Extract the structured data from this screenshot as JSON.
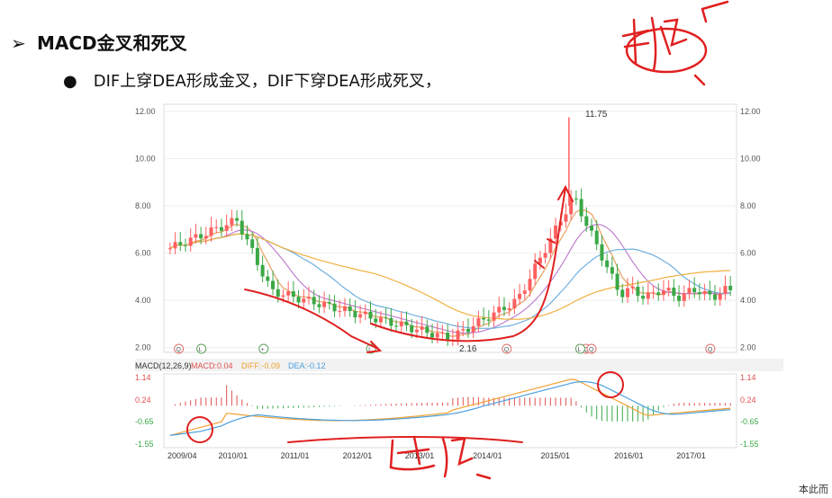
{
  "slide": {
    "heading_marker": "➢",
    "heading": "MACD金叉和死叉",
    "bullet_marker": "●",
    "bullet": "DIF上穿DEA形成金叉，DIF下穿DEA形成死叉，",
    "corner_text": "本此而"
  },
  "annotations": {
    "handwriting_top": "新低",
    "handwriting_bottom": "背离",
    "ink_color": "#e02020"
  },
  "chart_data": [
    {
      "type": "candlestick",
      "title": "",
      "y_ticks": [
        "12.00",
        "10.00",
        "8.00",
        "6.00",
        "4.00",
        "2.00"
      ],
      "ylim": [
        1.8,
        12.3
      ],
      "peak_label": "11.75",
      "low_label": "2.16",
      "event_markers": [
        "Q",
        "L",
        "+",
        "L",
        "Q",
        "Q",
        "L",
        "Q",
        "Q"
      ],
      "ma_colors": [
        "#e8a060",
        "#c080d0",
        "#70b0e0",
        "#f0b040"
      ],
      "up_color": "#ff6060",
      "down_color": "#3aa845"
    },
    {
      "type": "macd",
      "legend": {
        "name": "MACD(12,26,9)",
        "macd": "MACD:0.04",
        "diff": "DIFF:-0.09",
        "dea": "DEA:-0.12"
      },
      "legend_colors": {
        "macd": "#e05050",
        "diff": "#f0a030",
        "dea": "#4aa0e0"
      },
      "y_ticks": [
        "1.14",
        "0.24",
        "-0.65",
        "-1.55"
      ],
      "ylim": [
        -1.55,
        1.14
      ],
      "x_labels": [
        "2009/04",
        "2010/01",
        "2011/01",
        "2012/01",
        "2013/01",
        "2014/01",
        "2015/01",
        "2016/01",
        "2017/01"
      ]
    }
  ]
}
